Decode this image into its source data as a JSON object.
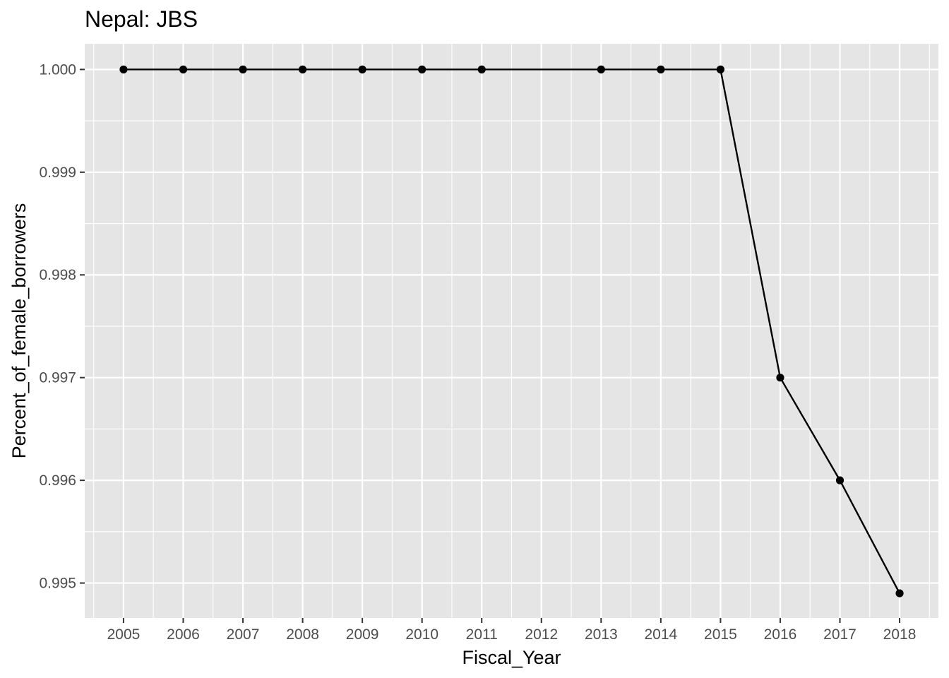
{
  "chart_data": {
    "type": "line",
    "title": "Nepal:  JBS",
    "xlabel": "Fiscal_Year",
    "ylabel": "Percent_of_female_borrowers",
    "x_ticks": [
      2005,
      2006,
      2007,
      2008,
      2009,
      2010,
      2011,
      2012,
      2013,
      2014,
      2015,
      2016,
      2017,
      2018
    ],
    "y_ticks": [
      0.995,
      0.996,
      0.997,
      0.998,
      0.999,
      1.0
    ],
    "y_tick_labels": [
      "0.995",
      "0.996",
      "0.997",
      "0.998",
      "0.999",
      "1.000"
    ],
    "xlim": [
      2004.35,
      2018.65
    ],
    "ylim": [
      0.99466,
      1.00025
    ],
    "series": [
      {
        "x": [
          2005,
          2006,
          2007,
          2008,
          2009,
          2010,
          2011,
          2013,
          2014,
          2015,
          2016,
          2017,
          2018
        ],
        "y": [
          1.0,
          1.0,
          1.0,
          1.0,
          1.0,
          1.0,
          1.0,
          1.0,
          1.0,
          1.0,
          0.997,
          0.996,
          0.9949
        ]
      }
    ],
    "colors": {
      "panel": "#e5e5e5",
      "grid": "#ffffff",
      "line": "#000000"
    },
    "grid": true,
    "legend": "none"
  }
}
